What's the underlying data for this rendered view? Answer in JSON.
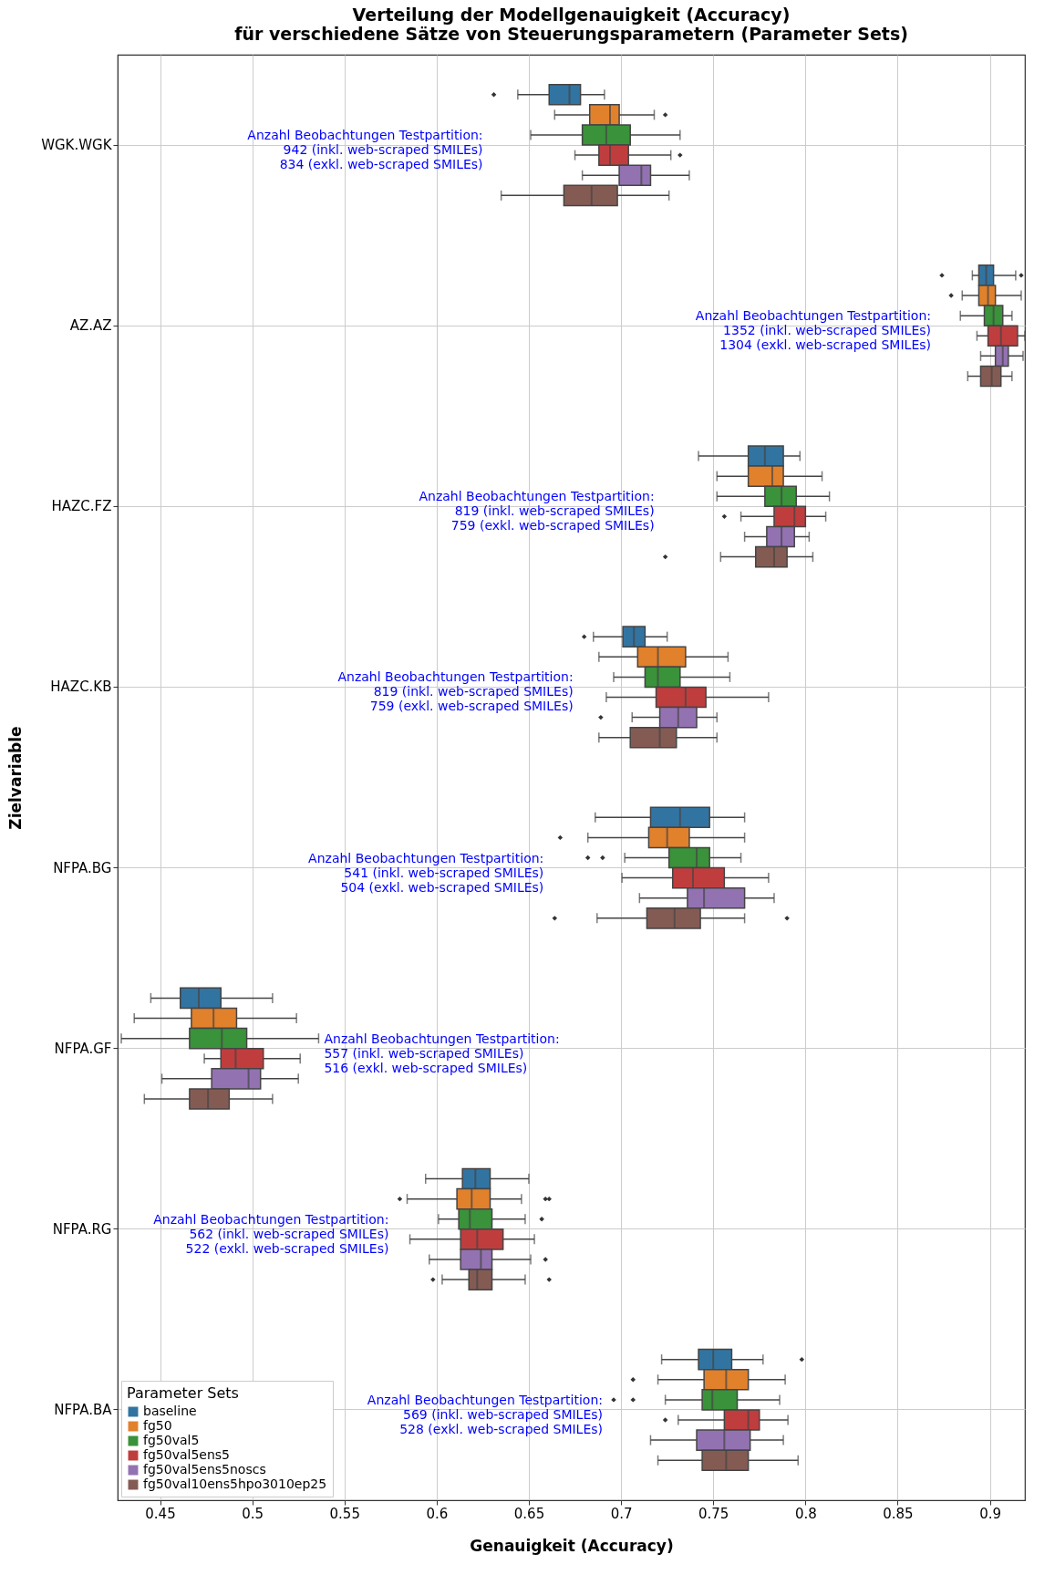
{
  "chart_data": {
    "type": "box",
    "orientation": "horizontal",
    "title": "Verteilung der Modellgenauigkeit (Accuracy)\nfür verschiedene Sätze von Steuerungsparametern (Parameter Sets)",
    "xlabel": "Genauigkeit (Accuracy)",
    "ylabel": "Zielvariable",
    "legend_title": "Parameter Sets",
    "legend": "bottom left",
    "grid": true,
    "xlim": [
      0.427,
      0.919
    ],
    "xticks": [
      0.45,
      0.5,
      0.55,
      0.6,
      0.65,
      0.7,
      0.75,
      0.8,
      0.85,
      0.9
    ],
    "categories": [
      "WGK.WGK",
      "AZ.AZ",
      "HAZC.FZ",
      "HAZC.KB",
      "NFPA.BG",
      "NFPA.GF",
      "NFPA.RG",
      "NFPA.BA"
    ],
    "series": [
      {
        "name": "baseline",
        "color": "#3274a1",
        "boxes": [
          {
            "low": 0.644,
            "q1": 0.661,
            "median": 0.672,
            "q3": 0.678,
            "high": 0.691,
            "outliers": [
              0.631
            ]
          },
          {
            "low": 0.8905,
            "q1": 0.894,
            "median": 0.898,
            "q3": 0.902,
            "high": 0.914,
            "outliers": [
              0.874,
              0.917
            ]
          },
          {
            "low": 0.742,
            "q1": 0.769,
            "median": 0.778,
            "q3": 0.788,
            "high": 0.797
          },
          {
            "low": 0.685,
            "q1": 0.701,
            "median": 0.707,
            "q3": 0.713,
            "high": 0.725,
            "outliers": [
              0.68
            ]
          },
          {
            "low": 0.686,
            "q1": 0.716,
            "median": 0.732,
            "q3": 0.748,
            "high": 0.767
          },
          {
            "low": 0.445,
            "q1": 0.461,
            "median": 0.471,
            "q3": 0.483,
            "high": 0.511
          },
          {
            "low": 0.594,
            "q1": 0.614,
            "median": 0.621,
            "q3": 0.629,
            "high": 0.65
          },
          {
            "low": 0.722,
            "q1": 0.742,
            "median": 0.75,
            "q3": 0.76,
            "high": 0.777,
            "outliers": [
              0.798
            ]
          }
        ]
      },
      {
        "name": "fg50",
        "color": "#e1812c",
        "boxes": [
          {
            "low": 0.664,
            "q1": 0.683,
            "median": 0.694,
            "q3": 0.699,
            "high": 0.718,
            "outliers": [
              0.724
            ]
          },
          {
            "low": 0.885,
            "q1": 0.894,
            "median": 0.899,
            "q3": 0.903,
            "high": 0.917,
            "outliers": [
              0.879
            ]
          },
          {
            "low": 0.752,
            "q1": 0.769,
            "median": 0.782,
            "q3": 0.788,
            "high": 0.809
          },
          {
            "low": 0.688,
            "q1": 0.709,
            "median": 0.72,
            "q3": 0.735,
            "high": 0.758
          },
          {
            "low": 0.682,
            "q1": 0.715,
            "median": 0.725,
            "q3": 0.737,
            "high": 0.767,
            "outliers": [
              0.667
            ]
          },
          {
            "low": 0.436,
            "q1": 0.467,
            "median": 0.479,
            "q3": 0.4915,
            "high": 0.524
          },
          {
            "low": 0.584,
            "q1": 0.611,
            "median": 0.619,
            "q3": 0.629,
            "high": 0.646,
            "outliers": [
              0.58,
              0.659,
              0.661
            ]
          },
          {
            "low": 0.72,
            "q1": 0.745,
            "median": 0.757,
            "q3": 0.769,
            "high": 0.789,
            "outliers": [
              0.7065
            ]
          }
        ]
      },
      {
        "name": "fg50val5",
        "color": "#3a923a",
        "boxes": [
          {
            "low": 0.651,
            "q1": 0.679,
            "median": 0.692,
            "q3": 0.705,
            "high": 0.732
          },
          {
            "low": 0.884,
            "q1": 0.897,
            "median": 0.902,
            "q3": 0.907,
            "high": 0.912
          },
          {
            "low": 0.752,
            "q1": 0.778,
            "median": 0.787,
            "q3": 0.795,
            "high": 0.813
          },
          {
            "low": 0.696,
            "q1": 0.713,
            "median": 0.72,
            "q3": 0.732,
            "high": 0.759
          },
          {
            "low": 0.702,
            "q1": 0.726,
            "median": 0.741,
            "q3": 0.748,
            "high": 0.765,
            "outliers": [
              0.682,
              0.69
            ]
          },
          {
            "low": 0.429,
            "q1": 0.466,
            "median": 0.4835,
            "q3": 0.497,
            "high": 0.536
          },
          {
            "low": 0.601,
            "q1": 0.612,
            "median": 0.618,
            "q3": 0.63,
            "high": 0.648,
            "outliers": [
              0.657
            ]
          },
          {
            "low": 0.724,
            "q1": 0.744,
            "median": 0.7495,
            "q3": 0.763,
            "high": 0.786,
            "outliers": [
              0.696,
              0.7065
            ]
          }
        ]
      },
      {
        "name": "fg50val5ens5",
        "color": "#c03d3e",
        "boxes": [
          {
            "low": 0.675,
            "q1": 0.688,
            "median": 0.694,
            "q3": 0.704,
            "high": 0.727,
            "outliers": [
              0.732
            ]
          },
          {
            "low": 0.893,
            "q1": 0.899,
            "median": 0.906,
            "q3": 0.915,
            "high": 0.919
          },
          {
            "low": 0.765,
            "q1": 0.783,
            "median": 0.794,
            "q3": 0.8,
            "high": 0.811,
            "outliers": [
              0.756
            ]
          },
          {
            "low": 0.692,
            "q1": 0.719,
            "median": 0.735,
            "q3": 0.746,
            "high": 0.78
          },
          {
            "low": 0.7005,
            "q1": 0.728,
            "median": 0.739,
            "q3": 0.756,
            "high": 0.78
          },
          {
            "low": 0.474,
            "q1": 0.483,
            "median": 0.491,
            "q3": 0.506,
            "high": 0.526
          },
          {
            "low": 0.5855,
            "q1": 0.613,
            "median": 0.622,
            "q3": 0.636,
            "high": 0.653
          },
          {
            "low": 0.731,
            "q1": 0.756,
            "median": 0.769,
            "q3": 0.775,
            "high": 0.7905,
            "outliers": [
              0.724
            ]
          }
        ]
      },
      {
        "name": "fg50val5ens5noscs",
        "color": "#9372b2",
        "boxes": [
          {
            "low": 0.679,
            "q1": 0.699,
            "median": 0.711,
            "q3": 0.716,
            "high": 0.737
          },
          {
            "low": 0.895,
            "q1": 0.903,
            "median": 0.907,
            "q3": 0.91,
            "high": 0.918
          },
          {
            "low": 0.767,
            "q1": 0.779,
            "median": 0.787,
            "q3": 0.794,
            "high": 0.802
          },
          {
            "low": 0.706,
            "q1": 0.721,
            "median": 0.731,
            "q3": 0.741,
            "high": 0.752,
            "outliers": [
              0.689
            ]
          },
          {
            "low": 0.71,
            "q1": 0.736,
            "median": 0.745,
            "q3": 0.767,
            "high": 0.783
          },
          {
            "low": 0.451,
            "q1": 0.478,
            "median": 0.498,
            "q3": 0.5045,
            "high": 0.525
          },
          {
            "low": 0.596,
            "q1": 0.613,
            "median": 0.624,
            "q3": 0.63,
            "high": 0.651,
            "outliers": [
              0.659
            ]
          },
          {
            "low": 0.716,
            "q1": 0.741,
            "median": 0.756,
            "q3": 0.77,
            "high": 0.788
          }
        ]
      },
      {
        "name": "fg50val10ens5hpo3010ep25",
        "color": "#845b53",
        "boxes": [
          {
            "low": 0.635,
            "q1": 0.669,
            "median": 0.684,
            "q3": 0.698,
            "high": 0.726
          },
          {
            "low": 0.888,
            "q1": 0.895,
            "median": 0.901,
            "q3": 0.906,
            "high": 0.912
          },
          {
            "low": 0.754,
            "q1": 0.773,
            "median": 0.783,
            "q3": 0.79,
            "high": 0.804,
            "outliers": [
              0.724
            ]
          },
          {
            "low": 0.688,
            "q1": 0.705,
            "median": 0.721,
            "q3": 0.73,
            "high": 0.752
          },
          {
            "low": 0.687,
            "q1": 0.714,
            "median": 0.729,
            "q3": 0.743,
            "high": 0.767,
            "outliers": [
              0.664,
              0.79
            ]
          },
          {
            "low": 0.4415,
            "q1": 0.466,
            "median": 0.476,
            "q3": 0.4875,
            "high": 0.511
          },
          {
            "low": 0.603,
            "q1": 0.6175,
            "median": 0.622,
            "q3": 0.63,
            "high": 0.648,
            "outliers": [
              0.598,
              0.661
            ]
          },
          {
            "low": 0.72,
            "q1": 0.744,
            "median": 0.757,
            "q3": 0.769,
            "high": 0.796
          }
        ]
      }
    ],
    "annotations": [
      "Anzahl Beobachtungen Testpartition:\n942 (inkl. web-scraped SMILEs)\n834 (exkl. web-scraped SMILEs)",
      "Anzahl Beobachtungen Testpartition:\n1352 (inkl. web-scraped SMILEs)\n1304 (exkl. web-scraped SMILEs)",
      "Anzahl Beobachtungen Testpartition:\n819 (inkl. web-scraped SMILEs)\n759 (exkl. web-scraped SMILEs)",
      "Anzahl Beobachtungen Testpartition:\n819 (inkl. web-scraped SMILEs)\n759 (exkl. web-scraped SMILEs)",
      "Anzahl Beobachtungen Testpartition:\n541 (inkl. web-scraped SMILEs)\n504 (exkl. web-scraped SMILEs)",
      "Anzahl Beobachtungen Testpartition:\n557 (inkl. web-scraped SMILEs)\n516 (exkl. web-scraped SMILEs)",
      "Anzahl Beobachtungen Testpartition:\n562 (inkl. web-scraped SMILEs)\n522 (exkl. web-scraped SMILEs)",
      "Anzahl Beobachtungen Testpartition:\n569 (inkl. web-scraped SMILEs)\n528 (exkl. web-scraped SMILEs)"
    ]
  }
}
